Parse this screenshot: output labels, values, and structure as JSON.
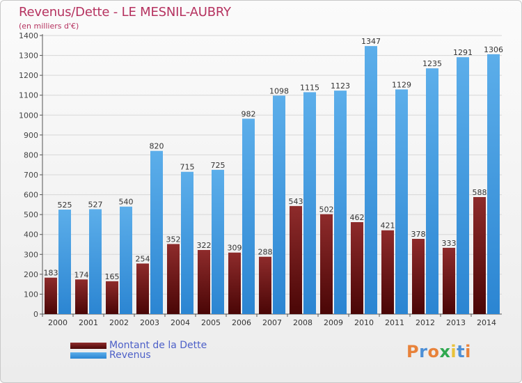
{
  "title": "Revenus/Dette - LE MESNIL-AUBRY",
  "subtitle": "(en milliers d'€)",
  "colors": {
    "dette": "#7a1e1e",
    "revenus": "#3f9ae0",
    "title": "#b5325f",
    "legend_text": "#4d60c8"
  },
  "logo": {
    "text": "Proxiti",
    "letter_colors": [
      "#e8823a",
      "#4d8fd6",
      "#e8823a",
      "#2fa84f",
      "#e8c23a",
      "#4d8fd6",
      "#e8823a"
    ]
  },
  "chart_data": {
    "type": "bar",
    "title": "Revenus/Dette - LE MESNIL-AUBRY",
    "subtitle": "(en milliers d'€)",
    "categories": [
      "2000",
      "2001",
      "2002",
      "2003",
      "2004",
      "2005",
      "2006",
      "2007",
      "2008",
      "2009",
      "2010",
      "2011",
      "2012",
      "2013",
      "2014"
    ],
    "series": [
      {
        "name": "Montant de la Dette",
        "values": [
          183,
          174,
          165,
          254,
          352,
          322,
          309,
          288,
          543,
          502,
          462,
          421,
          378,
          333,
          588
        ]
      },
      {
        "name": "Revenus",
        "values": [
          525,
          527,
          540,
          820,
          715,
          725,
          982,
          1098,
          1115,
          1123,
          1347,
          1129,
          1235,
          1291,
          1306
        ]
      }
    ],
    "yticks": [
      0,
      100,
      200,
      300,
      400,
      500,
      600,
      700,
      800,
      900,
      1000,
      1100,
      1200,
      1300,
      1400
    ],
    "ylim": [
      0,
      1400
    ],
    "grid": true,
    "legend_position": "bottom-left"
  }
}
